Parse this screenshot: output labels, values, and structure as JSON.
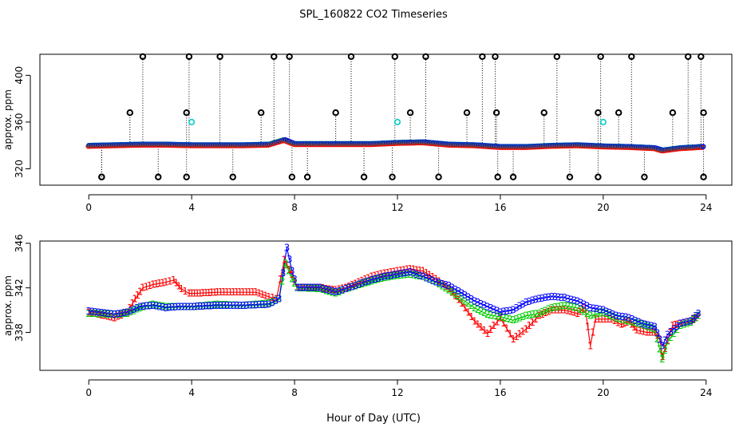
{
  "title": "SPL_160822  CO2 Timeseries",
  "xlabel": "Hour of Day (UTC)",
  "colors": {
    "series1": "#ff0000",
    "series2": "#00cc00",
    "series3": "#0000ff",
    "outlier": "#000000",
    "cyan": "#00cccc",
    "axis": "#000000"
  },
  "chart_data": [
    {
      "type": "scatter",
      "title": "SPL_160822  CO2 Timeseries",
      "ylabel": "approx. ppm",
      "xlabel": "",
      "xlim": [
        -1.9,
        25
      ],
      "ylim": [
        306,
        418
      ],
      "xticks": [
        0,
        4,
        8,
        12,
        16,
        20,
        24
      ],
      "xtick_labels": [
        "0",
        "4",
        "8",
        "12",
        "16",
        "20",
        "24"
      ],
      "yticks": [
        320,
        360,
        400
      ],
      "ytick_labels": [
        "320",
        "360",
        "400"
      ],
      "baseline": [
        [
          0,
          340
        ],
        [
          1,
          340.5
        ],
        [
          2,
          341
        ],
        [
          3,
          341
        ],
        [
          4,
          340.5
        ],
        [
          5,
          340.5
        ],
        [
          6,
          340.5
        ],
        [
          7,
          341
        ],
        [
          7.6,
          345
        ],
        [
          8,
          341.5
        ],
        [
          9,
          341.5
        ],
        [
          10,
          341.5
        ],
        [
          11,
          341.5
        ],
        [
          12,
          342.5
        ],
        [
          13,
          343
        ],
        [
          14,
          341
        ],
        [
          15,
          340.5
        ],
        [
          16,
          339
        ],
        [
          17,
          339
        ],
        [
          18,
          340
        ],
        [
          19,
          340.5
        ],
        [
          20,
          339.5
        ],
        [
          21,
          339
        ],
        [
          22,
          338
        ],
        [
          22.3,
          336
        ],
        [
          23,
          338
        ],
        [
          23.8,
          339
        ]
      ],
      "outliers_high": [
        0.5,
        1.6,
        2.1,
        3.8,
        3.9,
        5.1,
        6.7,
        7.2,
        7.8,
        9.6,
        10.2,
        11.9,
        12.5,
        13.1,
        14.7,
        15.3,
        15.8,
        15.85,
        17.7,
        18.2,
        19.8,
        19.9,
        20.6,
        21.1,
        22.7,
        23.3,
        23.8,
        23.9
      ],
      "outliers_high_values": [
        313,
        368,
        416,
        368,
        416,
        416,
        368,
        416,
        416,
        368,
        416,
        416,
        368,
        416,
        368,
        416,
        416,
        368,
        368,
        416,
        368,
        416,
        368,
        416,
        368,
        416,
        416,
        368
      ],
      "outliers_low": [
        0.5,
        2.7,
        3.8,
        5.6,
        7.9,
        8.5,
        10.7,
        11.8,
        13.6,
        15.9,
        16.5,
        18.7,
        19.8,
        21.6,
        23.9
      ],
      "outliers_low_values": [
        313,
        313,
        313,
        313,
        313,
        313,
        313,
        313,
        313,
        313,
        313,
        313,
        313,
        313,
        313
      ],
      "cyan_points": [
        [
          4.0,
          360
        ],
        [
          12.0,
          360
        ],
        [
          20.0,
          360
        ]
      ]
    },
    {
      "type": "line",
      "title": "",
      "ylabel": "approx. ppm",
      "xlabel": "Hour of Day (UTC)",
      "xlim": [
        -1.9,
        25
      ],
      "ylim": [
        334.6,
        346.2
      ],
      "xticks": [
        0,
        4,
        8,
        12,
        16,
        20,
        24
      ],
      "xtick_labels": [
        "0",
        "4",
        "8",
        "12",
        "16",
        "20",
        "24"
      ],
      "yticks": [
        338,
        342,
        346
      ],
      "ytick_labels": [
        "338",
        "342",
        "346"
      ],
      "series": [
        {
          "name": "1",
          "marker": "1",
          "values": [
            [
              0,
              339.8
            ],
            [
              1,
              339.3
            ],
            [
              1.5,
              339.8
            ],
            [
              1.8,
              341
            ],
            [
              2.1,
              342
            ],
            [
              2.5,
              342.3
            ],
            [
              3.0,
              342.5
            ],
            [
              3.3,
              342.7
            ],
            [
              3.6,
              341.9
            ],
            [
              3.9,
              341.5
            ],
            [
              4.1,
              341.5
            ],
            [
              5,
              341.6
            ],
            [
              6,
              341.6
            ],
            [
              6.5,
              341.6
            ],
            [
              7.0,
              341.2
            ],
            [
              7.3,
              341.0
            ],
            [
              7.6,
              344.5
            ],
            [
              7.9,
              343.2
            ],
            [
              8.1,
              342.0
            ],
            [
              9,
              342.0
            ],
            [
              9.6,
              341.8
            ],
            [
              10,
              342.0
            ],
            [
              11,
              343.0
            ],
            [
              11.5,
              343.3
            ],
            [
              12,
              343.5
            ],
            [
              12.5,
              343.7
            ],
            [
              13,
              343.5
            ],
            [
              13.5,
              342.8
            ],
            [
              14,
              341.9
            ],
            [
              14.5,
              340.6
            ],
            [
              15,
              339.0
            ],
            [
              15.5,
              337.9
            ],
            [
              16,
              339.3
            ],
            [
              16.5,
              337.4
            ],
            [
              17,
              338.3
            ],
            [
              17.5,
              339.5
            ],
            [
              18,
              340.0
            ],
            [
              18.5,
              340.0
            ],
            [
              19,
              339.7
            ],
            [
              19.3,
              340.2
            ],
            [
              19.5,
              336.8
            ],
            [
              19.7,
              339.2
            ],
            [
              20.3,
              339.2
            ],
            [
              20.7,
              338.7
            ],
            [
              21.0,
              339.0
            ],
            [
              21.3,
              338.2
            ],
            [
              21.7,
              338.0
            ],
            [
              22.0,
              338.0
            ],
            [
              22.2,
              337.4
            ],
            [
              22.3,
              335.8
            ],
            [
              22.5,
              337.3
            ],
            [
              22.7,
              338.6
            ],
            [
              23.0,
              338.8
            ],
            [
              23.4,
              339.0
            ],
            [
              23.7,
              339.5
            ]
          ]
        },
        {
          "name": "2",
          "marker": "2",
          "values": [
            [
              0,
              339.7
            ],
            [
              1,
              339.6
            ],
            [
              1.5,
              339.7
            ],
            [
              2,
              340.2
            ],
            [
              2.5,
              340.5
            ],
            [
              3.0,
              340.3
            ],
            [
              3.6,
              340.3
            ],
            [
              4.1,
              340.3
            ],
            [
              5,
              340.5
            ],
            [
              6,
              340.4
            ],
            [
              7.0,
              340.6
            ],
            [
              7.4,
              341.0
            ],
            [
              7.65,
              344.2
            ],
            [
              7.9,
              342.8
            ],
            [
              8.1,
              342.0
            ],
            [
              9,
              341.9
            ],
            [
              9.6,
              341.5
            ],
            [
              10,
              341.9
            ],
            [
              11,
              342.6
            ],
            [
              11.5,
              342.9
            ],
            [
              12,
              343.1
            ],
            [
              12.5,
              343.2
            ],
            [
              13,
              343.0
            ],
            [
              13.5,
              342.5
            ],
            [
              14,
              341.8
            ],
            [
              14.5,
              341.0
            ],
            [
              15,
              340.2
            ],
            [
              15.5,
              339.6
            ],
            [
              16,
              339.4
            ],
            [
              16.5,
              339.1
            ],
            [
              17,
              339.5
            ],
            [
              17.5,
              339.7
            ],
            [
              18,
              340.2
            ],
            [
              18.5,
              340.4
            ],
            [
              19,
              340.2
            ],
            [
              19.5,
              339.5
            ],
            [
              20,
              339.8
            ],
            [
              20.5,
              339.3
            ],
            [
              21,
              339.0
            ],
            [
              21.5,
              338.7
            ],
            [
              22,
              338.3
            ],
            [
              22.3,
              335.6
            ],
            [
              22.5,
              337.2
            ],
            [
              23,
              338.6
            ],
            [
              23.4,
              338.9
            ],
            [
              23.7,
              339.5
            ]
          ]
        },
        {
          "name": "3",
          "marker": "3",
          "values": [
            [
              0,
              339.9
            ],
            [
              1,
              339.6
            ],
            [
              1.5,
              339.8
            ],
            [
              2,
              340.3
            ],
            [
              2.5,
              340.4
            ],
            [
              3,
              340.2
            ],
            [
              3.6,
              340.3
            ],
            [
              4.1,
              340.3
            ],
            [
              5,
              340.4
            ],
            [
              6,
              340.4
            ],
            [
              7.0,
              340.5
            ],
            [
              7.4,
              341.0
            ],
            [
              7.7,
              345.6
            ],
            [
              7.9,
              343.5
            ],
            [
              8.1,
              342.0
            ],
            [
              9,
              342.0
            ],
            [
              9.6,
              341.6
            ],
            [
              10,
              341.9
            ],
            [
              11,
              342.7
            ],
            [
              11.5,
              343.0
            ],
            [
              12,
              343.2
            ],
            [
              12.5,
              343.4
            ],
            [
              13,
              343.0
            ],
            [
              13.5,
              342.5
            ],
            [
              14,
              342.2
            ],
            [
              14.5,
              341.5
            ],
            [
              15,
              340.8
            ],
            [
              15.5,
              340.3
            ],
            [
              16,
              339.8
            ],
            [
              16.5,
              340.0
            ],
            [
              17,
              340.7
            ],
            [
              17.5,
              341.0
            ],
            [
              18,
              341.2
            ],
            [
              18.5,
              341.1
            ],
            [
              19,
              340.8
            ],
            [
              19.5,
              340.2
            ],
            [
              20,
              340.0
            ],
            [
              20.5,
              339.5
            ],
            [
              21,
              339.3
            ],
            [
              21.5,
              338.8
            ],
            [
              22,
              338.5
            ],
            [
              22.3,
              336.8
            ],
            [
              22.5,
              337.8
            ],
            [
              23,
              338.8
            ],
            [
              23.4,
              339.0
            ],
            [
              23.7,
              339.7
            ]
          ]
        }
      ]
    }
  ]
}
